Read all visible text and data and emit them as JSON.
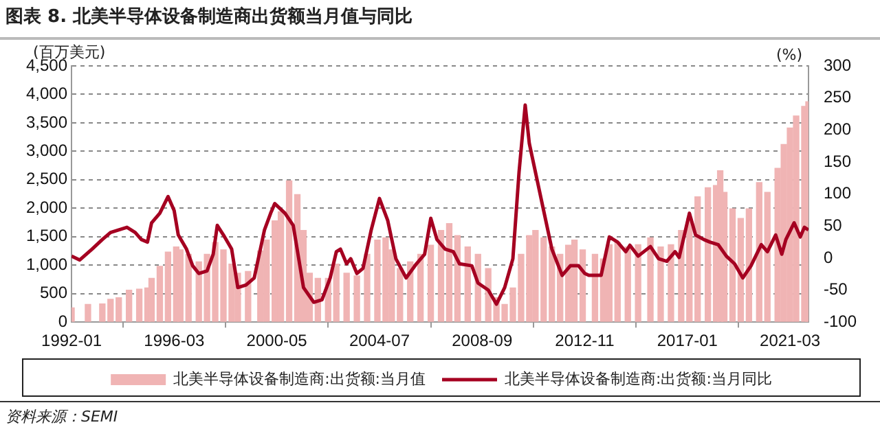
{
  "chart_data": {
    "type": "bar",
    "title": "图表 8. 北美半导体设备制造商出货额当月值与同比",
    "ylabel": "(百万美元)",
    "y2label": "(%)",
    "annotations": [
      "资料来源：SEMI"
    ],
    "xlim": [
      "1992-01",
      "2021-12"
    ],
    "xticks": [
      "1992-01",
      "1996-03",
      "2000-05",
      "2004-07",
      "2008-09",
      "2012-11",
      "2017-01",
      "2021-03"
    ],
    "ylim": [
      0,
      4500
    ],
    "yticks": [
      0,
      {
        "value": 500,
        "label": "500"
      },
      {
        "value": 1000,
        "label": "1,000"
      },
      {
        "value": 1500,
        "label": "1,500"
      },
      {
        "value": 2000,
        "label": "2,000"
      },
      {
        "value": 2500,
        "label": "2,500"
      },
      {
        "value": 3000,
        "label": "3,000"
      },
      {
        "value": 3500,
        "label": "3,500"
      },
      {
        "value": 4000,
        "label": "4,000"
      },
      {
        "value": 4500,
        "label": "4,500"
      }
    ],
    "y2lim": [
      -100,
      300
    ],
    "y2ticks": [
      -100,
      -50,
      0,
      50,
      100,
      150,
      200,
      250,
      300
    ],
    "grid": "y",
    "legend": "bottom",
    "marker": "none",
    "line_style": "solid",
    "series": [
      {
        "name": "北美半导体设备制造商:出货额:当月值",
        "color": "#f0b4b4",
        "x": [
          "1992-01",
          "1992-09",
          "1993-04",
          "1993-08",
          "1993-12",
          "1994-05",
          "1994-10",
          "1995-02",
          "1995-04",
          "1995-08",
          "1995-12",
          "1996-04",
          "1996-06",
          "1996-10",
          "1997-03",
          "1997-07",
          "1997-11",
          "1998-03",
          "1998-07",
          "1998-10",
          "1999-03",
          "1999-09",
          "1999-12",
          "2000-04",
          "2000-07",
          "2000-11",
          "2001-03",
          "2001-06",
          "2001-09",
          "2002-01",
          "2002-06",
          "2002-10",
          "2003-03",
          "2003-08",
          "2004-01",
          "2004-06",
          "2004-10",
          "2005-01",
          "2005-05",
          "2005-10",
          "2006-03",
          "2006-08",
          "2007-01",
          "2007-05",
          "2007-09",
          "2008-02",
          "2008-07",
          "2008-12",
          "2009-04",
          "2009-08",
          "2009-12",
          "2010-04",
          "2010-08",
          "2010-11",
          "2011-03",
          "2011-07",
          "2011-11",
          "2012-03",
          "2012-06",
          "2012-10",
          "2013-04",
          "2013-08",
          "2013-11",
          "2014-03",
          "2014-08",
          "2015-01",
          "2015-07",
          "2015-12",
          "2016-05",
          "2016-10",
          "2017-02",
          "2017-06",
          "2017-11",
          "2018-03",
          "2018-05",
          "2018-07",
          "2018-11",
          "2019-03",
          "2019-07",
          "2019-12",
          "2020-04",
          "2020-09",
          "2020-12",
          "2021-03",
          "2021-06",
          "2021-10",
          "2021-12"
        ],
        "values": [
          250,
          310,
          320,
          400,
          430,
          560,
          580,
          600,
          770,
          980,
          1230,
          1320,
          1270,
          1190,
          1060,
          1190,
          1400,
          1270,
          1020,
          860,
          890,
          1250,
          1440,
          1780,
          1940,
          2480,
          2240,
          1610,
          860,
          770,
          770,
          1020,
          860,
          810,
          1190,
          1440,
          1480,
          1270,
          940,
          1060,
          1190,
          1350,
          1610,
          1730,
          1520,
          1320,
          1190,
          940,
          430,
          310,
          600,
          1190,
          1520,
          1610,
          1480,
          1320,
          1190,
          1350,
          1440,
          1270,
          1190,
          1110,
          1360,
          1400,
          1320,
          1360,
          1480,
          1320,
          1360,
          1610,
          1820,
          2200,
          2360,
          2400,
          2660,
          2280,
          1990,
          1820,
          1990,
          2450,
          2280,
          2700,
          3120,
          3410,
          3620,
          3790,
          3870
        ]
      },
      {
        "name": "北美半导体设备制造商:出货额:当月同比",
        "type": "line",
        "axis": "y2",
        "color": "#a50021",
        "x": [
          "1992-01",
          "1992-05",
          "1992-11",
          "1993-04",
          "1993-08",
          "1993-12",
          "1994-04",
          "1994-08",
          "1994-11",
          "1995-02",
          "1995-04",
          "1995-08",
          "1995-12",
          "1996-03",
          "1996-05",
          "1996-09",
          "1996-12",
          "1997-03",
          "1997-07",
          "1997-10",
          "1997-12",
          "1998-03",
          "1998-07",
          "1998-10",
          "1999-02",
          "1999-06",
          "1999-11",
          "2000-02",
          "2000-04",
          "2000-09",
          "2001-01",
          "2001-06",
          "2001-11",
          "2002-03",
          "2002-07",
          "2002-10",
          "2002-12",
          "2003-03",
          "2003-05",
          "2003-08",
          "2003-11",
          "2004-03",
          "2004-07",
          "2004-11",
          "2005-03",
          "2005-08",
          "2006-01",
          "2006-05",
          "2006-08",
          "2006-11",
          "2007-03",
          "2007-07",
          "2007-10",
          "2008-04",
          "2008-07",
          "2008-12",
          "2009-04",
          "2009-08",
          "2009-12",
          "2010-03",
          "2010-06",
          "2010-08",
          "2010-11",
          "2011-03",
          "2011-07",
          "2011-12",
          "2012-04",
          "2012-08",
          "2012-11",
          "2013-01",
          "2013-07",
          "2013-11",
          "2014-03",
          "2014-07",
          "2014-09",
          "2015-01",
          "2015-07",
          "2015-11",
          "2016-03",
          "2016-07",
          "2016-09",
          "2017-02",
          "2017-05",
          "2017-09",
          "2017-12",
          "2018-04",
          "2018-08",
          "2018-12",
          "2019-04",
          "2019-08",
          "2020-01",
          "2020-04",
          "2020-08",
          "2020-11",
          "2021-01",
          "2021-05",
          "2021-08",
          "2021-10",
          "2021-12"
        ],
        "values": [
          3,
          -3,
          14,
          29,
          40,
          44,
          48,
          40,
          29,
          25,
          55,
          70,
          96,
          74,
          36,
          14,
          -12,
          -24,
          -20,
          6,
          51,
          36,
          14,
          -46,
          -42,
          -31,
          44,
          70,
          85,
          70,
          51,
          -46,
          -69,
          -65,
          -31,
          10,
          14,
          -9,
          -1,
          -24,
          -16,
          44,
          93,
          59,
          -1,
          -31,
          -9,
          6,
          62,
          29,
          14,
          10,
          -9,
          -12,
          -39,
          -50,
          -72,
          -46,
          -1,
          134,
          239,
          179,
          134,
          74,
          14,
          -27,
          -12,
          -12,
          -24,
          -27,
          -27,
          33,
          25,
          10,
          20,
          3,
          18,
          -1,
          -5,
          10,
          1,
          70,
          36,
          29,
          25,
          21,
          3,
          -9,
          -31,
          -12,
          21,
          10,
          36,
          6,
          29,
          55,
          33,
          48,
          44
        ]
      }
    ]
  }
}
